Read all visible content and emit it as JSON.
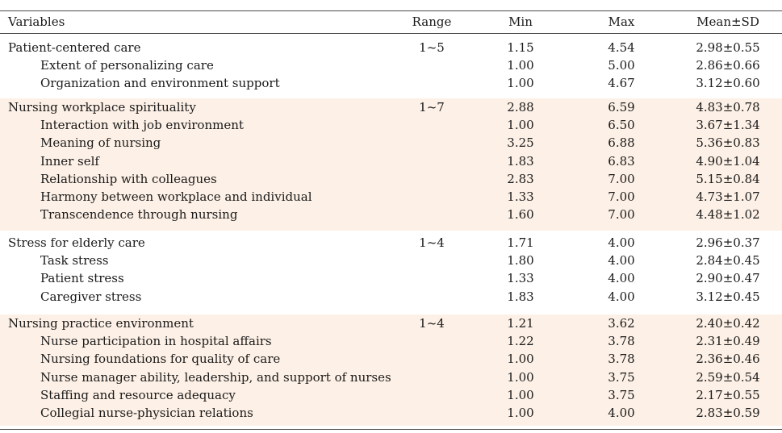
{
  "table": {
    "headers": {
      "variables": "Variables",
      "range": "Range",
      "min": "Min",
      "max": "Max",
      "mean_sd": "Mean±SD"
    },
    "groups": [
      {
        "rows": [
          {
            "variable": "Patient-centered care",
            "range": "1~5",
            "min": "1.15",
            "max": "4.54",
            "mean_sd": "2.98±0.55"
          },
          {
            "variable": "Extent of personalizing care",
            "range": "",
            "min": "1.00",
            "max": "5.00",
            "mean_sd": "2.86±0.66"
          },
          {
            "variable": "Organization and environment support",
            "range": "",
            "min": "1.00",
            "max": "4.67",
            "mean_sd": "3.12±0.60"
          }
        ]
      },
      {
        "rows": [
          {
            "variable": "Nursing workplace spirituality",
            "range": "1~7",
            "min": "2.88",
            "max": "6.59",
            "mean_sd": "4.83±0.78"
          },
          {
            "variable": "Interaction with job environment",
            "range": "",
            "min": "1.00",
            "max": "6.50",
            "mean_sd": "3.67±1.34"
          },
          {
            "variable": "Meaning of nursing",
            "range": "",
            "min": "3.25",
            "max": "6.88",
            "mean_sd": "5.36±0.83"
          },
          {
            "variable": "Inner self",
            "range": "",
            "min": "1.83",
            "max": "6.83",
            "mean_sd": "4.90±1.04"
          },
          {
            "variable": "Relationship with colleagues",
            "range": "",
            "min": "2.83",
            "max": "7.00",
            "mean_sd": "5.15±0.84"
          },
          {
            "variable": "Harmony between workplace and individual",
            "range": "",
            "min": "1.33",
            "max": "7.00",
            "mean_sd": "4.73±1.07"
          },
          {
            "variable": "Transcendence through nursing",
            "range": "",
            "min": "1.60",
            "max": "7.00",
            "mean_sd": "4.48±1.02"
          }
        ]
      },
      {
        "rows": [
          {
            "variable": "Stress for elderly care",
            "range": "1~4",
            "min": "1.71",
            "max": "4.00",
            "mean_sd": "2.96±0.37"
          },
          {
            "variable": "Task stress",
            "range": "",
            "min": "1.80",
            "max": "4.00",
            "mean_sd": "2.84±0.45"
          },
          {
            "variable": "Patient stress",
            "range": "",
            "min": "1.33",
            "max": "4.00",
            "mean_sd": "2.90±0.47"
          },
          {
            "variable": "Caregiver stress",
            "range": "",
            "min": "1.83",
            "max": "4.00",
            "mean_sd": "3.12±0.45"
          }
        ]
      },
      {
        "rows": [
          {
            "variable": "Nursing practice environment",
            "range": "1~4",
            "min": "1.21",
            "max": "3.62",
            "mean_sd": "2.40±0.42"
          },
          {
            "variable": "Nurse participation in hospital affairs",
            "range": "",
            "min": "1.22",
            "max": "3.78",
            "mean_sd": "2.31±0.49"
          },
          {
            "variable": "Nursing foundations for quality of care",
            "range": "",
            "min": "1.00",
            "max": "3.78",
            "mean_sd": "2.36±0.46"
          },
          {
            "variable": "Nurse manager ability, leadership, and support of nurses",
            "range": "",
            "min": "1.00",
            "max": "3.75",
            "mean_sd": "2.59±0.54"
          },
          {
            "variable": "Staffing and resource adequacy",
            "range": "",
            "min": "1.00",
            "max": "3.75",
            "mean_sd": "2.17±0.55"
          },
          {
            "variable": "Collegial nurse-physician relations",
            "range": "",
            "min": "1.00",
            "max": "4.00",
            "mean_sd": "2.83±0.59"
          }
        ]
      }
    ]
  },
  "colors": {
    "shaded_row_bg": "#fdf0e6",
    "rule": "#4a4a4a",
    "text": "#1a1a1a"
  }
}
